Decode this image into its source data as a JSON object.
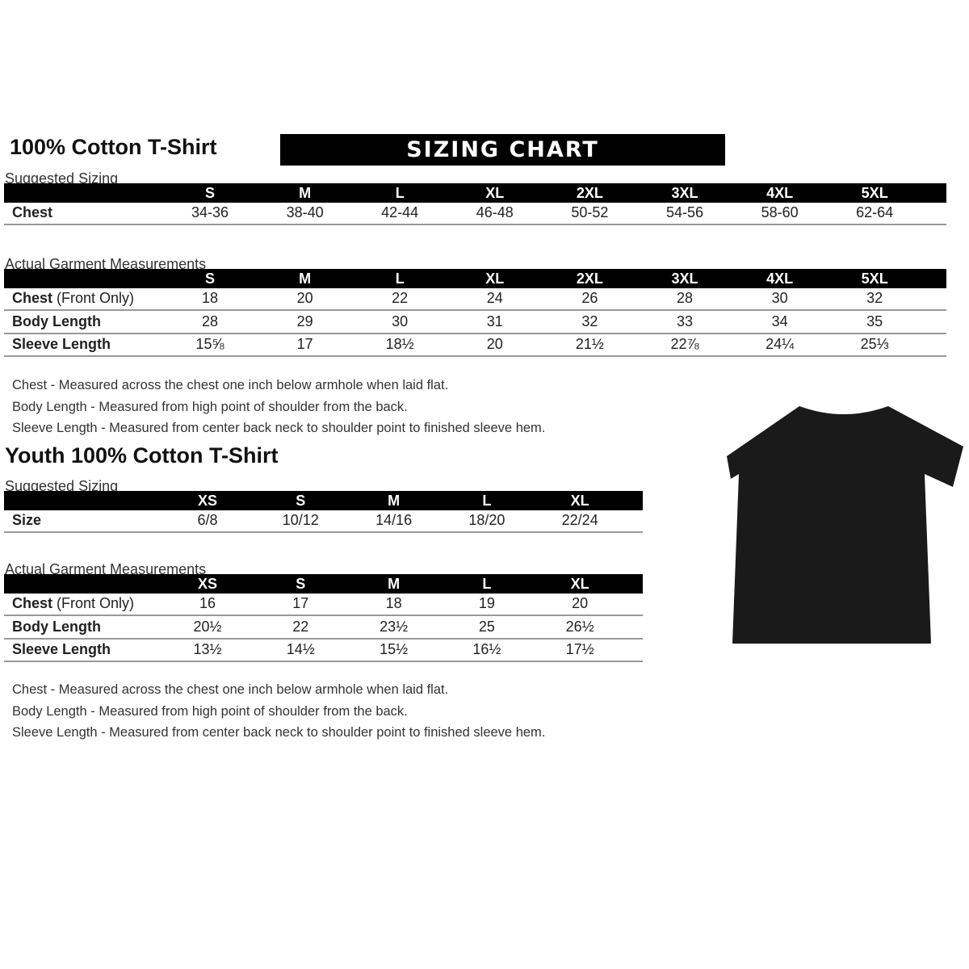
{
  "adult": {
    "title": "100% Cotton T-Shirt",
    "banner": "SIZING CHART",
    "suggested_label": "Suggested Sizing",
    "sizes": [
      "S",
      "M",
      "L",
      "XL",
      "2XL",
      "3XL",
      "4XL",
      "5XL"
    ],
    "chest_label": "Chest",
    "chest": [
      "34-36",
      "38-40",
      "42-44",
      "46-48",
      "50-52",
      "54-56",
      "58-60",
      "62-64"
    ],
    "actual_label": "Actual Garment Measurements",
    "rows": [
      {
        "label": "Chest",
        "sub": " (Front Only)",
        "values": [
          "18",
          "20",
          "22",
          "24",
          "26",
          "28",
          "30",
          "32"
        ]
      },
      {
        "label": "Body Length",
        "sub": "",
        "values": [
          "28",
          "29",
          "30",
          "31",
          "32",
          "33",
          "34",
          "35"
        ]
      },
      {
        "label": "Sleeve Length",
        "sub": "",
        "values": [
          "15⅝",
          "17",
          "18½",
          "20",
          "21½",
          "22⅞",
          "24¼",
          "25⅓"
        ]
      }
    ],
    "notes": [
      "Chest - Measured across the chest one inch below armhole when laid flat.",
      "Body Length - Measured from high point of shoulder from the back.",
      "Sleeve Length - Measured from center back neck to shoulder point to finished sleeve hem."
    ]
  },
  "youth": {
    "title": "Youth 100% Cotton T-Shirt",
    "suggested_label": "Suggested Sizing",
    "sizes": [
      "XS",
      "S",
      "M",
      "L",
      "XL"
    ],
    "size_label": "Size",
    "size_values": [
      "6/8",
      "10/12",
      "14/16",
      "18/20",
      "22/24"
    ],
    "actual_label": "Actual Garment Measurements",
    "rows": [
      {
        "label": "Chest",
        "sub": " (Front Only)",
        "values": [
          "16",
          "17",
          "18",
          "19",
          "20"
        ]
      },
      {
        "label": "Body Length",
        "sub": "",
        "values": [
          "20½",
          "22",
          "23½",
          "25",
          "26½"
        ]
      },
      {
        "label": "Sleeve Length",
        "sub": "",
        "values": [
          "13½",
          "14½",
          "15½",
          "16½",
          "17½"
        ]
      }
    ],
    "notes": [
      "Chest - Measured across the chest one inch below armhole when laid flat.",
      "Body Length - Measured from high point of shoulder from the back.",
      "Sleeve Length - Measured from center back neck to shoulder point to finished sleeve hem."
    ]
  },
  "tshirt_color": "#1a1a1a"
}
